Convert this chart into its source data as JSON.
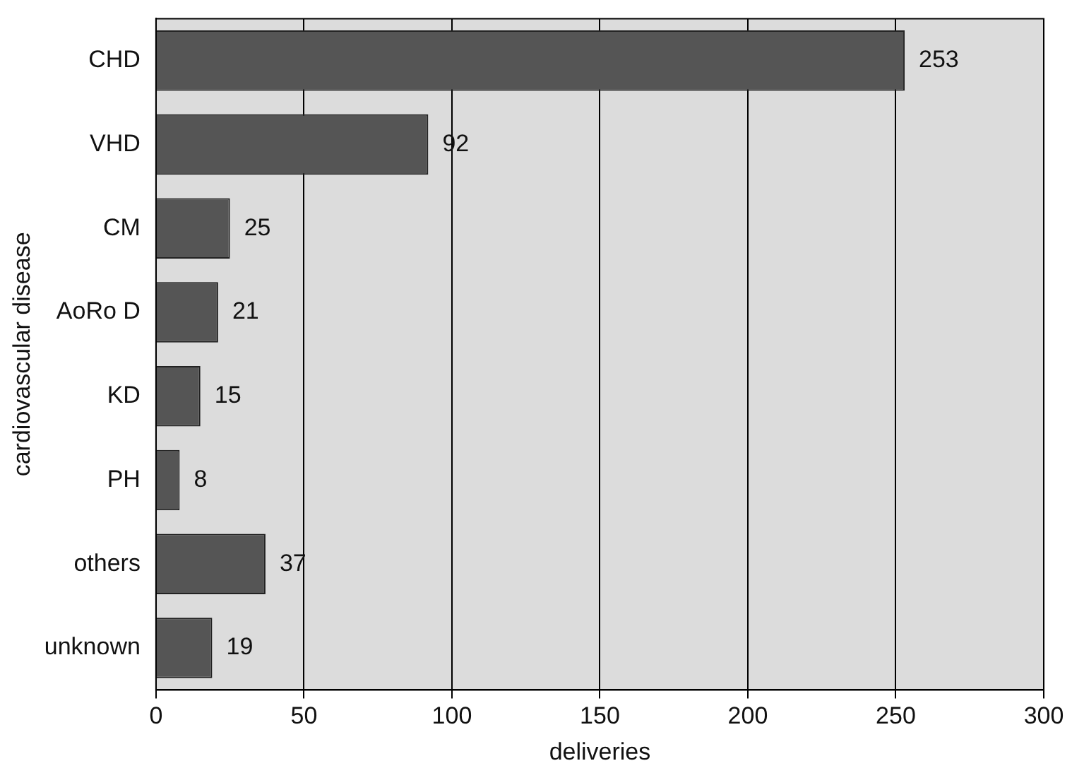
{
  "chart_data": {
    "type": "bar",
    "orientation": "horizontal",
    "categories": [
      "CHD",
      "VHD",
      "CM",
      "AoRo D",
      "KD",
      "PH",
      "others",
      "unknown"
    ],
    "values": [
      253,
      92,
      25,
      21,
      15,
      8,
      37,
      19
    ],
    "color": "#555555",
    "xlim": [
      0,
      300
    ],
    "xticks": [
      0,
      50,
      100,
      150,
      200,
      250,
      300
    ],
    "grid": "x",
    "data_labels": true,
    "legend": false,
    "xlabel": "deliveries",
    "ylabel": "cardiovascular disease"
  }
}
